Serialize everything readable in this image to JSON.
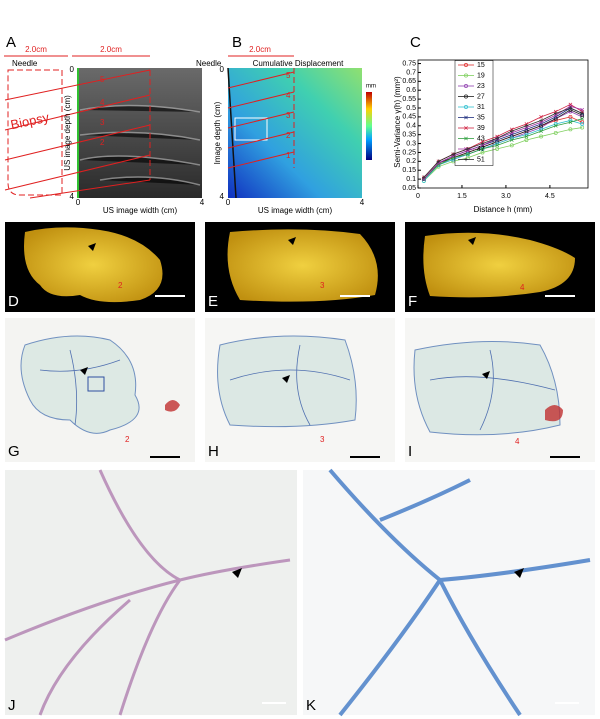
{
  "panel_labels": [
    "A",
    "B",
    "C",
    "D",
    "E",
    "F",
    "G",
    "H",
    "I",
    "J",
    "K"
  ],
  "panel_a": {
    "scale_labels": [
      "2.0cm",
      "2.0cm"
    ],
    "needle": "Needle",
    "biopsy": "Biopsy",
    "y_label": "US image depth (cm)",
    "x_label": "US image width (cm)",
    "x_ticks": [
      "0",
      "4"
    ],
    "y_ticks": [
      "0",
      "4"
    ],
    "zone_numbers": [
      "5",
      "4",
      "3",
      "2"
    ]
  },
  "panel_b": {
    "scale_label": "2.0cm",
    "needle": "Needle",
    "title": "Cumulative Displacement",
    "y_label": "Image depth (cm)",
    "x_label": "US image width (cm)",
    "x_ticks": [
      "0",
      "4"
    ],
    "y_ticks": [
      "0",
      "4"
    ],
    "zone_numbers": [
      "5",
      "4",
      "3",
      "2",
      "1"
    ],
    "colorbar_unit": "mm"
  },
  "photo_samples": [
    "2",
    "3",
    "4"
  ],
  "stain_samples": [
    "2",
    "3",
    "4"
  ],
  "chart_data": {
    "type": "line",
    "y_label": "Semi-Variance γ(h) (mm²)",
    "x_label": "Distance h (mm)",
    "x": [
      0.2,
      0.7,
      1.2,
      1.7,
      2.2,
      2.7,
      3.2,
      3.7,
      4.2,
      4.7,
      5.2,
      5.6
    ],
    "xlim": [
      0,
      5.8
    ],
    "xticks": [
      0,
      1.5,
      {
        "value": 3,
        "label": "3.0"
      },
      4.5
    ],
    "ylim": [
      0.05,
      0.77
    ],
    "yticks": [
      0.05,
      0.1,
      0.15,
      0.2,
      0.25,
      0.3,
      0.35,
      0.4,
      0.45,
      0.5,
      0.55,
      0.6,
      0.65,
      0.7,
      0.75
    ],
    "series": [
      {
        "name": "15",
        "color": "#e03030",
        "marker": "o",
        "values": [
          0.1,
          0.19,
          0.22,
          0.25,
          0.28,
          0.31,
          0.34,
          0.37,
          0.4,
          0.43,
          0.45,
          0.42
        ]
      },
      {
        "name": "19",
        "color": "#80d060",
        "marker": "o",
        "values": [
          0.09,
          0.17,
          0.2,
          0.22,
          0.25,
          0.27,
          0.29,
          0.32,
          0.34,
          0.36,
          0.38,
          0.39
        ]
      },
      {
        "name": "23",
        "color": "#9040b0",
        "marker": "o",
        "values": [
          0.1,
          0.18,
          0.21,
          0.24,
          0.27,
          0.3,
          0.33,
          0.36,
          0.39,
          0.44,
          0.48,
          0.45
        ]
      },
      {
        "name": "27",
        "color": "#202020",
        "marker": "o",
        "values": [
          0.1,
          0.19,
          0.22,
          0.25,
          0.28,
          0.31,
          0.34,
          0.37,
          0.4,
          0.44,
          0.49,
          0.46
        ]
      },
      {
        "name": "31",
        "color": "#30c0d0",
        "marker": "o",
        "values": [
          0.09,
          0.18,
          0.21,
          0.24,
          0.27,
          0.3,
          0.33,
          0.35,
          0.38,
          0.41,
          0.43,
          0.41
        ]
      },
      {
        "name": "35",
        "color": "#203080",
        "marker": "x",
        "values": [
          0.1,
          0.19,
          0.23,
          0.26,
          0.29,
          0.32,
          0.35,
          0.38,
          0.41,
          0.45,
          0.5,
          0.47
        ]
      },
      {
        "name": "39",
        "color": "#d02040",
        "marker": "x",
        "values": [
          0.11,
          0.2,
          0.24,
          0.27,
          0.31,
          0.34,
          0.38,
          0.41,
          0.45,
          0.48,
          0.52,
          0.48
        ]
      },
      {
        "name": "43",
        "color": "#30a040",
        "marker": "x",
        "values": [
          0.1,
          0.18,
          0.22,
          0.24,
          0.27,
          0.29,
          0.32,
          0.34,
          0.37,
          0.4,
          0.42,
          0.44
        ]
      },
      {
        "name": "47",
        "color": "#a030a0",
        "marker": "x",
        "values": [
          0.1,
          0.19,
          0.23,
          0.26,
          0.29,
          0.33,
          0.36,
          0.39,
          0.42,
          0.46,
          0.51,
          0.49
        ]
      },
      {
        "name": "51",
        "color": "#303030",
        "marker": "+",
        "values": [
          0.11,
          0.2,
          0.24,
          0.27,
          0.3,
          0.33,
          0.37,
          0.4,
          0.43,
          0.47,
          0.5,
          0.47
        ]
      }
    ]
  }
}
